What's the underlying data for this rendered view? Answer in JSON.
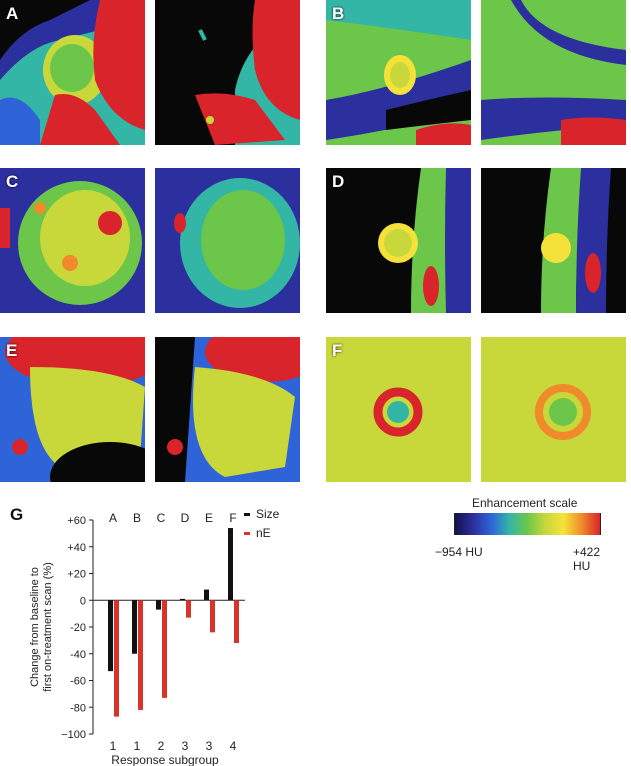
{
  "panels": [
    {
      "label": "A"
    },
    {
      "label": "B"
    },
    {
      "label": "C"
    },
    {
      "label": "D"
    },
    {
      "label": "E"
    },
    {
      "label": "F"
    }
  ],
  "scale": {
    "title": "Enhancement scale",
    "min_label": "−954 HU",
    "max_label": "+422 HU",
    "colors": [
      "#14124a",
      "#2c2f9e",
      "#2f64d8",
      "#33b6a6",
      "#6cc64a",
      "#c8d83a",
      "#f4e23a",
      "#f08a2a",
      "#d8242a"
    ]
  },
  "chart_data": {
    "type": "bar",
    "panel_label": "G",
    "categories": [
      "A",
      "B",
      "C",
      "D",
      "E",
      "F"
    ],
    "x_tick_labels": [
      "1",
      "1",
      "2",
      "3",
      "3",
      "4"
    ],
    "xlabel": "Response subgroup",
    "ylabel_lines": [
      "Change from baseline to",
      "first on-treatment scan (%)"
    ],
    "ylim": [
      -100,
      60
    ],
    "yticks": [
      60,
      40,
      20,
      0,
      -20,
      -40,
      -60,
      -80,
      -100
    ],
    "ytick_labels": [
      "+60",
      "+40",
      "+20",
      "0",
      "-20",
      "-40",
      "-60",
      "-80",
      "−100"
    ],
    "series": [
      {
        "name": "Size",
        "color": "#111111",
        "values": [
          -53,
          -40,
          -7,
          1,
          8,
          54
        ]
      },
      {
        "name": "nE",
        "color": "#d8342c",
        "values": [
          -87,
          -82,
          -73,
          -13,
          -24,
          -32
        ]
      }
    ]
  }
}
